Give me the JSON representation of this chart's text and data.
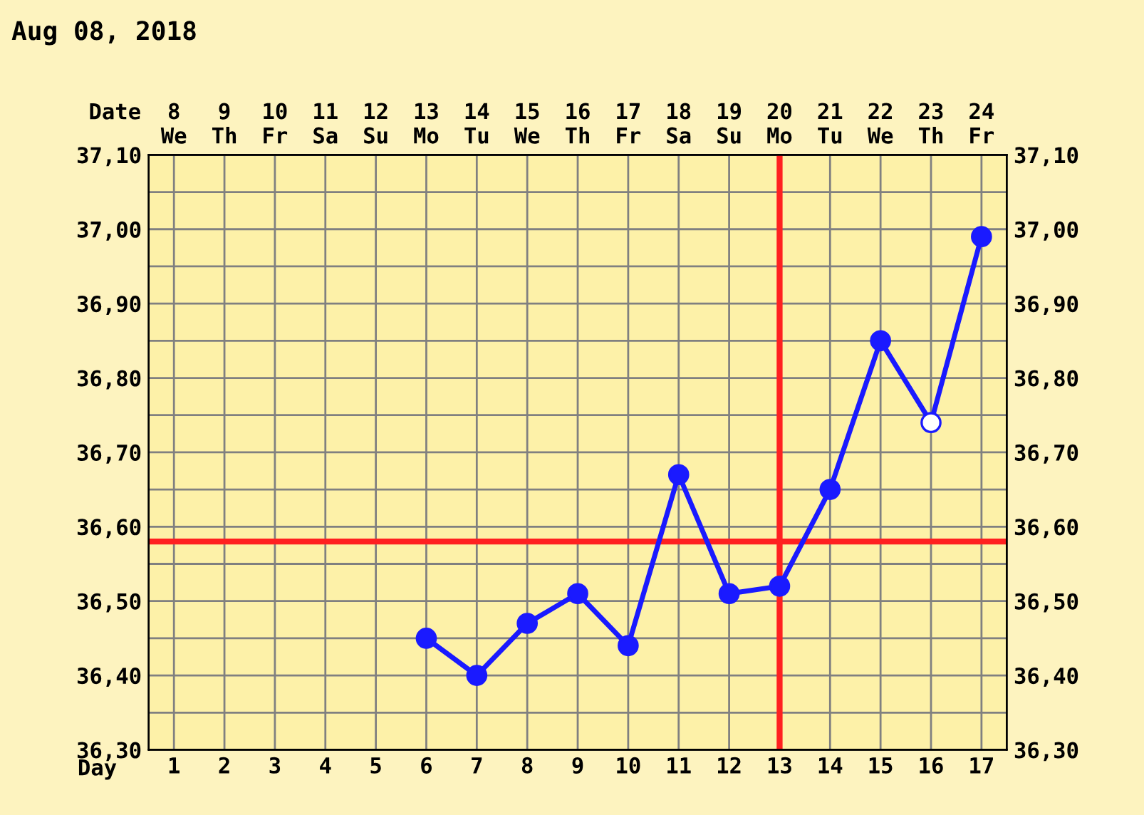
{
  "chart_data": {
    "type": "line",
    "title": "Aug 08, 2018",
    "categories": [
      "1",
      "2",
      "3",
      "4",
      "5",
      "6",
      "7",
      "8",
      "9",
      "10",
      "11",
      "12",
      "13",
      "14",
      "15",
      "16",
      "17"
    ],
    "x2lim": [
      "2018-08-07T12:00",
      "2018-08-24T12:00"
    ],
    "x2ticks": [
      {
        "value": "2018-08-08",
        "label": "8\nWe"
      },
      {
        "value": "2018-08-09",
        "label": "9\nTh"
      },
      {
        "value": "2018-08-10",
        "label": "10\nFr"
      },
      {
        "value": "2018-08-11",
        "label": "11\nSa"
      },
      {
        "value": "2018-08-12",
        "label": "12\nSu"
      },
      {
        "value": "2018-08-13",
        "label": "13\nMo"
      },
      {
        "value": "2018-08-14",
        "label": "14\nTu"
      },
      {
        "value": "2018-08-15",
        "label": "15\nWe"
      },
      {
        "value": "2018-08-16",
        "label": "16\nTh"
      },
      {
        "value": "2018-08-17",
        "label": "17\nFr"
      },
      {
        "value": "2018-08-18",
        "label": "18\nSa"
      },
      {
        "value": "2018-08-19",
        "label": "19\nSu"
      },
      {
        "value": "2018-08-20",
        "label": "20\nMo"
      },
      {
        "value": "2018-08-21",
        "label": "21\nTu"
      },
      {
        "value": "2018-08-22",
        "label": "22\nWe"
      },
      {
        "value": "2018-08-23",
        "label": "23\nTh"
      },
      {
        "value": "2018-08-24",
        "label": "24\nFr"
      }
    ],
    "xlabel": "Day",
    "x2label": "Date",
    "series": [
      {
        "color": "#1a1aff",
        "values": [
          null,
          null,
          null,
          null,
          null,
          36.45,
          36.4,
          36.47,
          36.51,
          36.44,
          36.67,
          36.51,
          36.52,
          36.65,
          36.85,
          36.74,
          36.99
        ],
        "colors": [
          "#1a1aff",
          "#1a1aff",
          "#1a1aff",
          "#1a1aff",
          "#1a1aff",
          "#1a1aff",
          "#1a1aff",
          "#1a1aff",
          "#1a1aff",
          "#1a1aff",
          "#1a1aff",
          "#1a1aff",
          "#1a1aff",
          "#1a1aff",
          "#1a1aff",
          "#ffffff",
          "#1a1aff"
        ]
      }
    ],
    "marker": "circle",
    "line_style": "solid",
    "grid": true,
    "ylim": [
      36.3,
      37.1
    ],
    "yticks": [
      {
        "value": 36.3,
        "label": "36,30"
      },
      {
        "value": 36.35,
        "label": null
      },
      {
        "value": 36.4,
        "label": "36,40"
      },
      {
        "value": 36.45,
        "label": null
      },
      {
        "value": 36.5,
        "label": "36,50"
      },
      {
        "value": 36.55,
        "label": null
      },
      {
        "value": 36.6,
        "label": "36,60"
      },
      {
        "value": 36.65,
        "label": null
      },
      {
        "value": 36.7,
        "label": "36,70"
      },
      {
        "value": 36.75,
        "label": null
      },
      {
        "value": 36.8,
        "label": "36,80"
      },
      {
        "value": 36.85,
        "label": null
      },
      {
        "value": 36.9,
        "label": "36,90"
      },
      {
        "value": 36.95,
        "label": null
      },
      {
        "value": 37.0,
        "label": "37,00"
      },
      {
        "value": 37.05,
        "label": null
      },
      {
        "value": 37.1,
        "label": "37,10"
      }
    ],
    "y2lim": [
      36.3,
      37.1
    ],
    "y2ticks": [
      {
        "value": 36.3,
        "label": "36,30"
      },
      {
        "value": 36.35,
        "label": null
      },
      {
        "value": 36.4,
        "label": "36,40"
      },
      {
        "value": 36.45,
        "label": null
      },
      {
        "value": 36.5,
        "label": "36,50"
      },
      {
        "value": 36.55,
        "label": null
      },
      {
        "value": 36.6,
        "label": "36,60"
      },
      {
        "value": 36.65,
        "label": null
      },
      {
        "value": 36.7,
        "label": "36,70"
      },
      {
        "value": 36.75,
        "label": null
      },
      {
        "value": 36.8,
        "label": "36,80"
      },
      {
        "value": 36.85,
        "label": null
      },
      {
        "value": 36.9,
        "label": "36,90"
      },
      {
        "value": 36.95,
        "label": null
      },
      {
        "value": 37.0,
        "label": "37,00"
      },
      {
        "value": 37.05,
        "label": null
      },
      {
        "value": 37.1,
        "label": "37,10"
      }
    ],
    "ref_lines": [
      {
        "axis": "y",
        "value": 36.58,
        "color": "#ff2020"
      },
      {
        "axis": "x",
        "value": "13",
        "color": "#ff2020"
      }
    ]
  }
}
